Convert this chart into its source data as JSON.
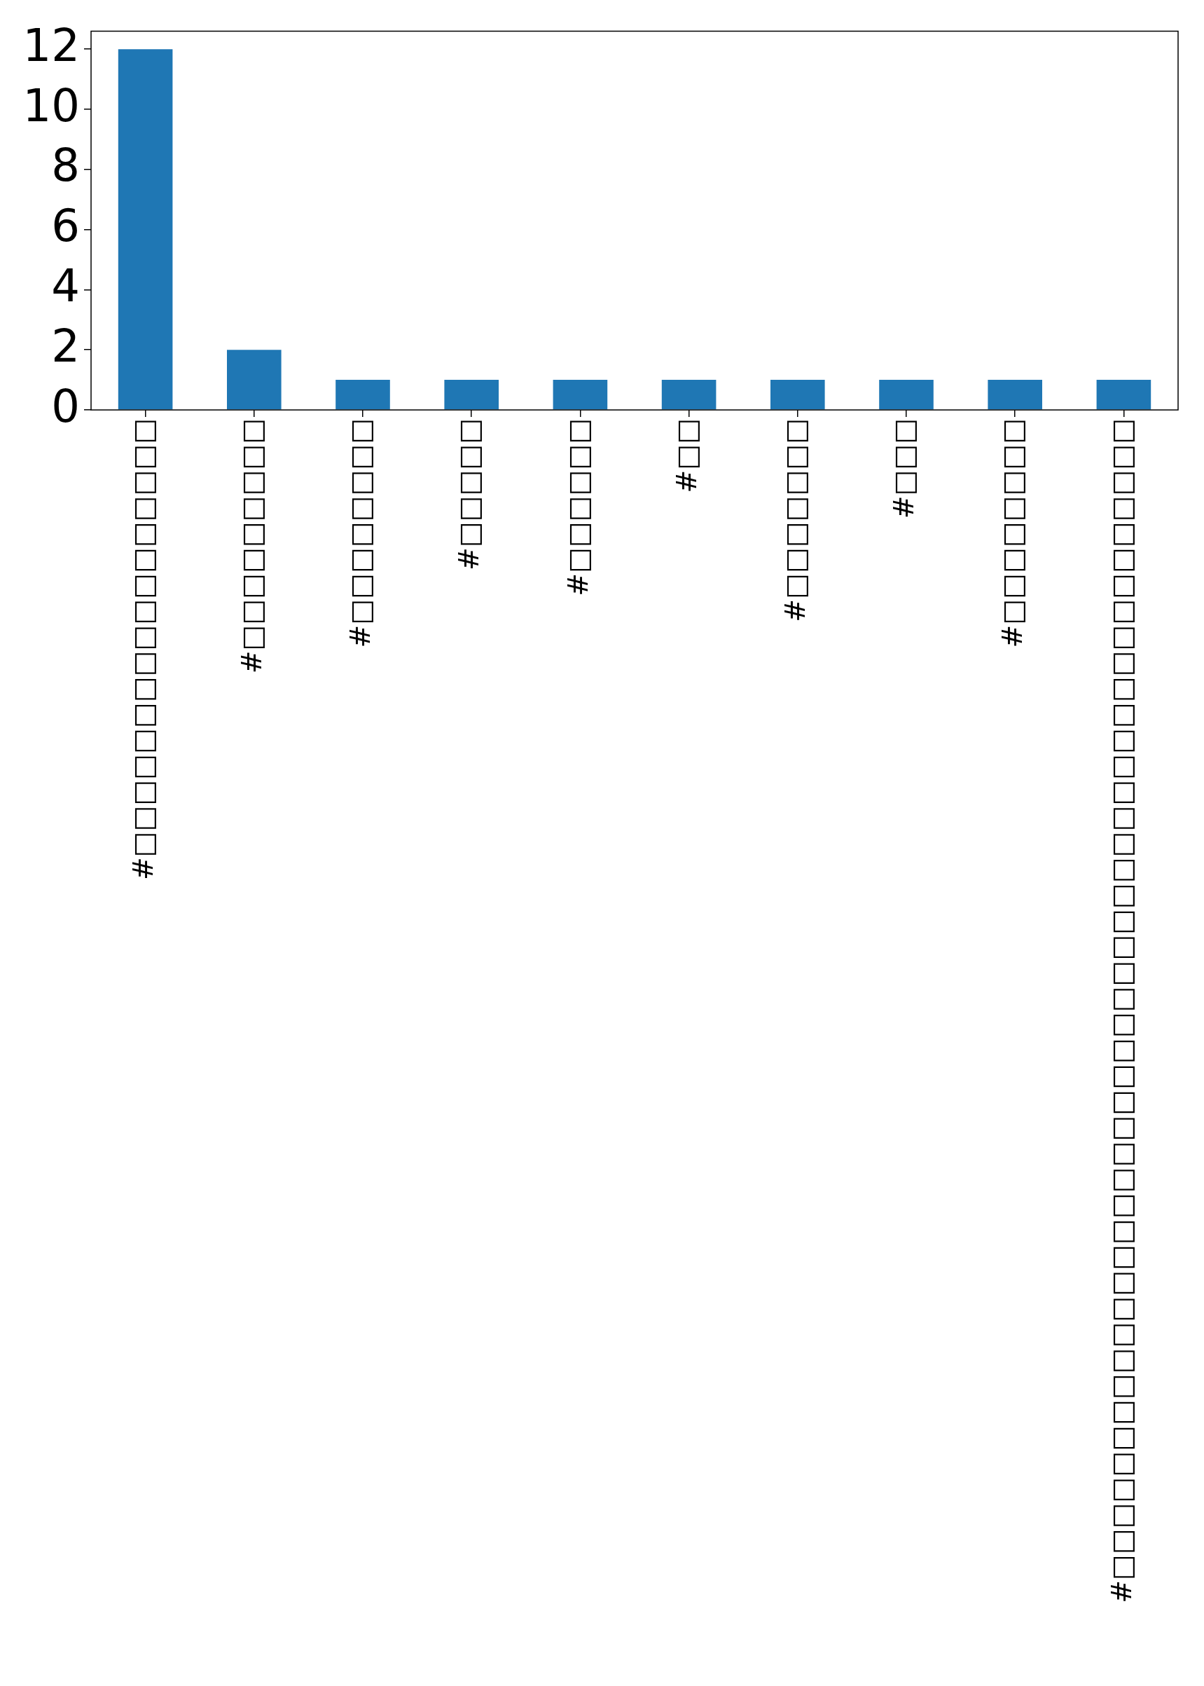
{
  "chart_data": {
    "type": "bar",
    "categories": [
      "#□□□□□□□□□□□□□□□□□",
      "#□□□□□□□□□",
      "#□□□□□□□□",
      "#□□□□□",
      "#□□□□□□",
      "#□□",
      "#□□□□□□□",
      "#□□□",
      "#□□□□□□□□",
      "#□□□□□□□□□□□□□□□□□□□□□□□□□□□□□□□□□□□□□□□□□□□□□"
    ],
    "values": [
      12,
      2,
      1,
      1,
      1,
      1,
      1,
      1,
      1,
      1
    ],
    "color": "#1f77b4",
    "ylim": [
      0,
      12.6
    ],
    "yticks": [
      0,
      2,
      4,
      6,
      8,
      10,
      12
    ],
    "grid": false
  }
}
